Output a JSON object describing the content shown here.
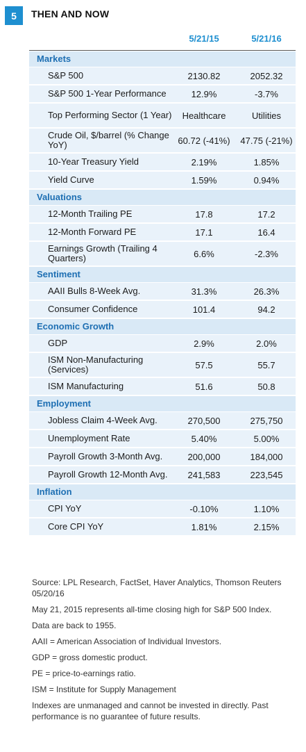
{
  "header": {
    "badge": "5",
    "title": "THEN AND NOW"
  },
  "columns": {
    "col1": "5/21/15",
    "col2": "5/21/16"
  },
  "sections": [
    {
      "name": "Markets",
      "rows": [
        {
          "label": "S&P 500",
          "v1": "2130.82",
          "v2": "2052.32"
        },
        {
          "label": "S&P 500 1-Year Performance",
          "v1": "12.9%",
          "v2": "-3.7%"
        },
        {
          "label": "Top Performing Sector (1 Year)",
          "v1": "Healthcare",
          "v2": "Utilities"
        },
        {
          "label": "Crude Oil, $/barrel (% Change YoY)",
          "v1": "60.72 (-41%)",
          "v2": "47.75 (-21%)"
        },
        {
          "label": "10-Year Treasury Yield",
          "v1": "2.19%",
          "v2": "1.85%"
        },
        {
          "label": "Yield Curve",
          "v1": "1.59%",
          "v2": "0.94%"
        }
      ]
    },
    {
      "name": "Valuations",
      "rows": [
        {
          "label": "12-Month Trailing PE",
          "v1": "17.8",
          "v2": "17.2"
        },
        {
          "label": "12-Month Forward PE",
          "v1": "17.1",
          "v2": "16.4"
        },
        {
          "label": "Earnings Growth (Trailing 4 Quarters)",
          "v1": "6.6%",
          "v2": "-2.3%"
        }
      ]
    },
    {
      "name": "Sentiment",
      "rows": [
        {
          "label": "AAII Bulls 8-Week Avg.",
          "v1": "31.3%",
          "v2": "26.3%"
        },
        {
          "label": "Consumer Confidence",
          "v1": "101.4",
          "v2": "94.2"
        }
      ]
    },
    {
      "name": "Economic Growth",
      "rows": [
        {
          "label": "GDP",
          "v1": "2.9%",
          "v2": "2.0%"
        },
        {
          "label": "ISM Non-Manufacturing (Services)",
          "v1": "57.5",
          "v2": "55.7"
        },
        {
          "label": "ISM Manufacturing",
          "v1": "51.6",
          "v2": "50.8"
        }
      ]
    },
    {
      "name": "Employment",
      "rows": [
        {
          "label": "Jobless Claim 4-Week Avg.",
          "v1": "270,500",
          "v2": "275,750"
        },
        {
          "label": "Unemployment Rate",
          "v1": "5.40%",
          "v2": "5.00%"
        },
        {
          "label": "Payroll Growth 3-Month Avg.",
          "v1": "200,000",
          "v2": "184,000"
        },
        {
          "label": "Payroll Growth 12-Month Avg.",
          "v1": "241,583",
          "v2": "223,545"
        }
      ]
    },
    {
      "name": "Inflation",
      "rows": [
        {
          "label": "CPI YoY",
          "v1": "-0.10%",
          "v2": "1.10%"
        },
        {
          "label": "Core CPI YoY",
          "v1": "1.81%",
          "v2": "2.15%"
        }
      ]
    }
  ],
  "notes": [
    "Source: LPL Research, FactSet, Haver Analytics, Thomson Reuters 05/20/16",
    "May 21, 2015 represents all-time closing high for S&P 500 Index.",
    "Data are back to 1955.",
    "AAII = American Association of Individual Investors.",
    "GDP = gross domestic product.",
    "PE = price-to-earnings ratio.",
    "ISM = Institute for Supply Management",
    "Indexes are unmanaged and cannot be invested in directly. Past performance is no guarantee of future results."
  ],
  "colors": {
    "accent": "#1e8fd0",
    "section_bg": "#d9e9f6",
    "row_bg": "#e9f2fa"
  }
}
